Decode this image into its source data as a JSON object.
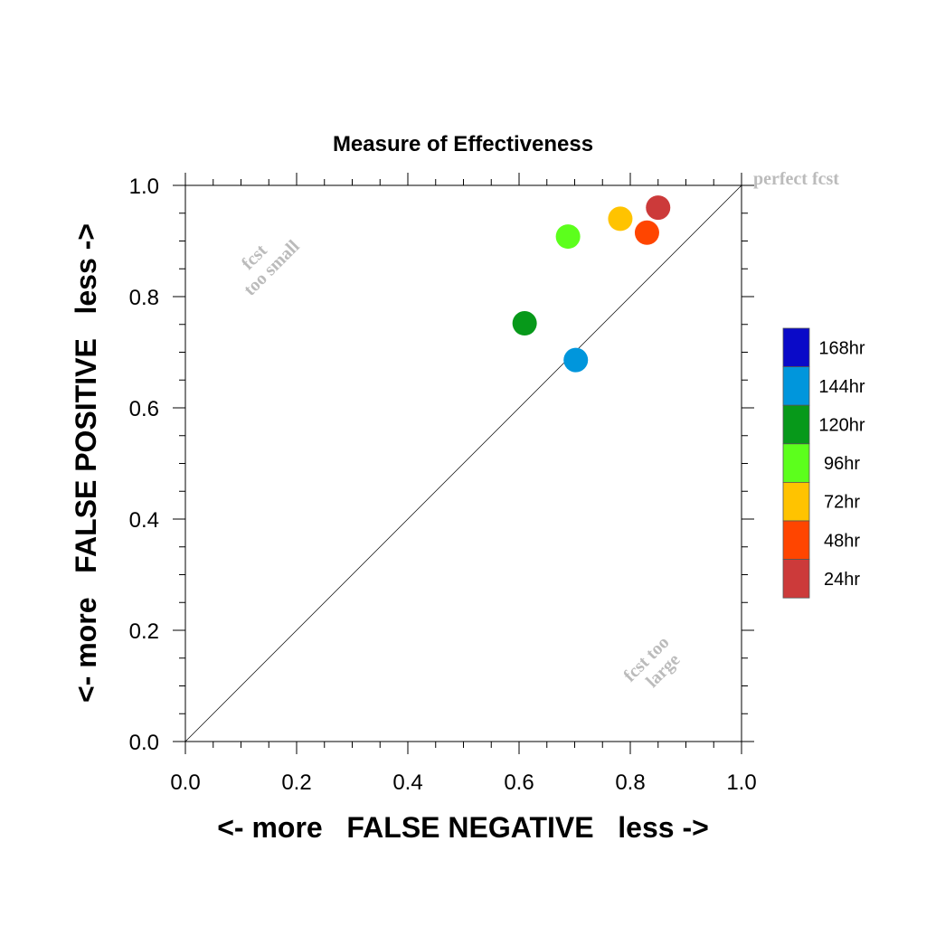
{
  "chart_data": {
    "type": "scatter",
    "title": "Measure of Effectiveness",
    "xlabel": "<- more   FALSE NEGATIVE   less ->",
    "ylabel": "<- more   FALSE POSITIVE   less ->",
    "xlim": [
      0.0,
      1.0
    ],
    "ylim": [
      0.0,
      1.0
    ],
    "xticks": [
      "0.0",
      "0.2",
      "0.4",
      "0.6",
      "0.8",
      "1.0"
    ],
    "yticks": [
      "0.0",
      "0.2",
      "0.4",
      "0.6",
      "0.8",
      "1.0"
    ],
    "grid": false,
    "diagonal_line": true,
    "legend_position": "right",
    "points": [
      {
        "name": "24hr",
        "x": 0.85,
        "y": 0.96,
        "color": "#cc3a3a"
      },
      {
        "name": "48hr",
        "x": 0.83,
        "y": 0.915,
        "color": "#ff4500"
      },
      {
        "name": "72hr",
        "x": 0.782,
        "y": 0.94,
        "color": "#ffc300"
      },
      {
        "name": "96hr",
        "x": 0.688,
        "y": 0.908,
        "color": "#5cff1c"
      },
      {
        "name": "120hr",
        "x": 0.61,
        "y": 0.752,
        "color": "#07991a"
      },
      {
        "name": "144hr",
        "x": 0.702,
        "y": 0.686,
        "color": "#0096dc"
      }
    ],
    "legend": [
      {
        "label": "168hr",
        "color": "#0a0ac8"
      },
      {
        "label": "144hr",
        "color": "#0096dc"
      },
      {
        "label": "120hr",
        "color": "#07991a"
      },
      {
        "label": "96hr",
        "color": "#5cff1c"
      },
      {
        "label": "72hr",
        "color": "#ffc300"
      },
      {
        "label": "48hr",
        "color": "#ff4500"
      },
      {
        "label": "24hr",
        "color": "#cc3a3a"
      }
    ],
    "annotations": {
      "perfect": "perfect fcst",
      "too_small_1": "fcst",
      "too_small_2": "too small",
      "too_large_1": "fcst too",
      "too_large_2": "large"
    }
  }
}
